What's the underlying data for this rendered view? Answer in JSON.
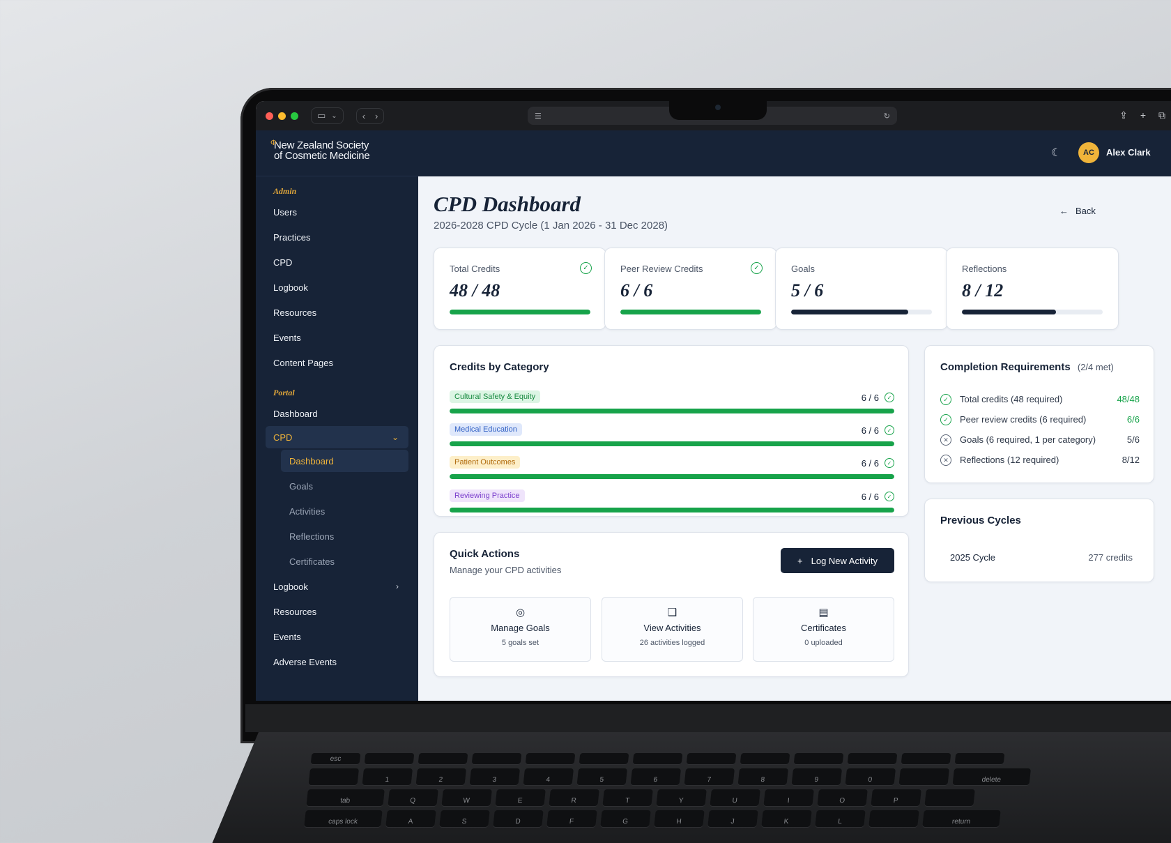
{
  "org": {
    "name_line1": "New Zealand Society",
    "name_line2": "of Cosmetic Medicine"
  },
  "sidebar": {
    "admin_label": "Admin",
    "admin_items": [
      {
        "label": "Users"
      },
      {
        "label": "Practices"
      },
      {
        "label": "CPD"
      },
      {
        "label": "Logbook"
      },
      {
        "label": "Resources"
      },
      {
        "label": "Events"
      },
      {
        "label": "Content Pages"
      }
    ],
    "portal_label": "Portal",
    "portal_dashboard": "Dashboard",
    "cpd_label": "CPD",
    "cpd_sub": [
      {
        "label": "Dashboard"
      },
      {
        "label": "Goals"
      },
      {
        "label": "Activities"
      },
      {
        "label": "Reflections"
      },
      {
        "label": "Certificates"
      }
    ],
    "logbook": "Logbook",
    "resources": "Resources",
    "events": "Events",
    "adverse_events": "Adverse Events"
  },
  "header": {
    "avatar_initials": "AC",
    "user_name": "Alex Clark"
  },
  "page": {
    "title": "CPD Dashboard",
    "subtitle": "2026-2028 CPD Cycle (1 Jan 2026 - 31 Dec 2028)",
    "back_label": "Back"
  },
  "stats": [
    {
      "label": "Total Credits",
      "value": "48 / 48",
      "progress": 1.0,
      "complete": true
    },
    {
      "label": "Peer Review Credits",
      "value": "6 / 6",
      "progress": 1.0,
      "complete": true
    },
    {
      "label": "Goals",
      "value": "5 / 6",
      "progress": 0.833,
      "complete": false
    },
    {
      "label": "Reflections",
      "value": "8 / 12",
      "progress": 0.667,
      "complete": false
    }
  ],
  "categories": {
    "title": "Credits by Category",
    "items": [
      {
        "name": "Cultural Safety & Equity",
        "value": "6 / 6",
        "progress": 1.0,
        "tag_bg": "#dcf5e4",
        "tag_fg": "#168a3f"
      },
      {
        "name": "Medical Education",
        "value": "6 / 6",
        "progress": 1.0,
        "tag_bg": "#dfe8fb",
        "tag_fg": "#2f5fc4"
      },
      {
        "name": "Patient Outcomes",
        "value": "6 / 6",
        "progress": 1.0,
        "tag_bg": "#fdefc9",
        "tag_fg": "#b06a0b"
      },
      {
        "name": "Reviewing Practice",
        "value": "6 / 6",
        "progress": 1.0,
        "tag_bg": "#efe4fb",
        "tag_fg": "#7a3dcc"
      }
    ]
  },
  "quick_actions": {
    "title": "Quick Actions",
    "subtitle": "Manage your CPD activities",
    "log_button": "Log New Activity",
    "cards": [
      {
        "title": "Manage Goals",
        "meta": "5 goals set",
        "icon": "target-icon"
      },
      {
        "title": "View Activities",
        "meta": "26 activities logged",
        "icon": "book-icon"
      },
      {
        "title": "Certificates",
        "meta": "0 uploaded",
        "icon": "document-icon"
      }
    ]
  },
  "requirements": {
    "title": "Completion Requirements",
    "summary": "(2/4 met)",
    "items": [
      {
        "label": "Total credits (48 required)",
        "value": "48/48",
        "met": true
      },
      {
        "label": "Peer review credits (6 required)",
        "value": "6/6",
        "met": true
      },
      {
        "label": "Goals (6 required, 1 per category)",
        "value": "5/6",
        "met": false
      },
      {
        "label": "Reflections (12 required)",
        "value": "8/12",
        "met": false
      }
    ]
  },
  "previous_cycles": {
    "title": "Previous Cycles",
    "items": [
      {
        "name": "2025 Cycle",
        "credits": "277 credits"
      }
    ]
  },
  "colors": {
    "navy": "#172337",
    "gold": "#f0b43a",
    "green": "#17a34a"
  }
}
